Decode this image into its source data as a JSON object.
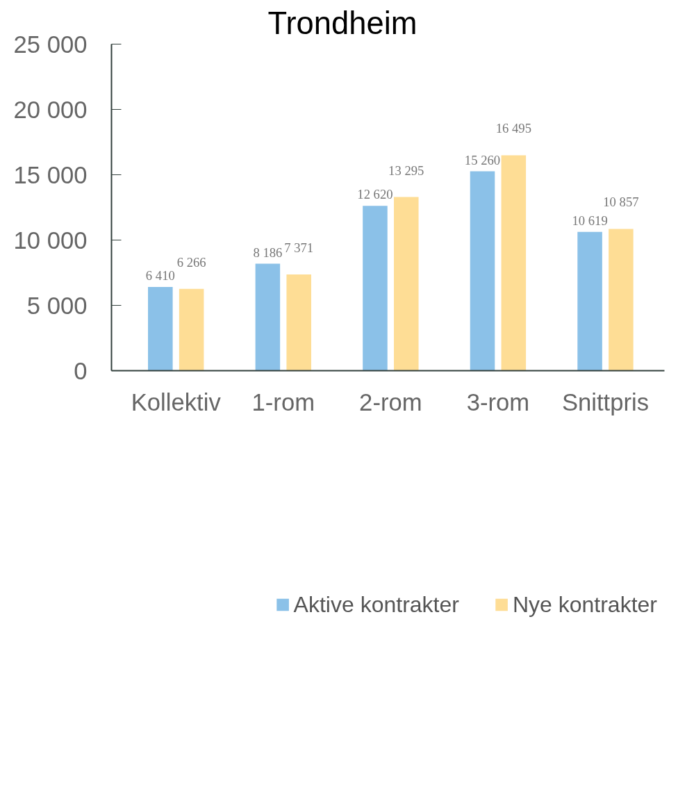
{
  "chart_data": {
    "type": "bar",
    "title": "Trondheim",
    "categories": [
      "Kollektiv",
      "1-rom",
      "2-rom",
      "3-rom",
      "Snittpris"
    ],
    "series": [
      {
        "name": "Aktive kontrakter",
        "color": "#8bc1e8",
        "values": [
          6410,
          8186,
          12620,
          15260,
          10619
        ],
        "value_labels": [
          "6 410",
          "8 186",
          "12 620",
          "15 260",
          "10 619"
        ]
      },
      {
        "name": "Nye kontrakter",
        "color": "#fedd95",
        "values": [
          6266,
          7371,
          13295,
          16495,
          10857
        ],
        "value_labels": [
          "6 266",
          "7 371",
          "13 295",
          "16 495",
          "10 857"
        ]
      }
    ],
    "ylim": [
      0,
      25000
    ],
    "yticks": [
      {
        "value": 0,
        "label": "0"
      },
      {
        "value": 5000,
        "label": "5 000"
      },
      {
        "value": 10000,
        "label": "10 000"
      },
      {
        "value": 15000,
        "label": "15 000"
      },
      {
        "value": 20000,
        "label": "20 000"
      },
      {
        "value": 25000,
        "label": "25 000"
      }
    ],
    "grid": false,
    "legend": "bottom"
  }
}
